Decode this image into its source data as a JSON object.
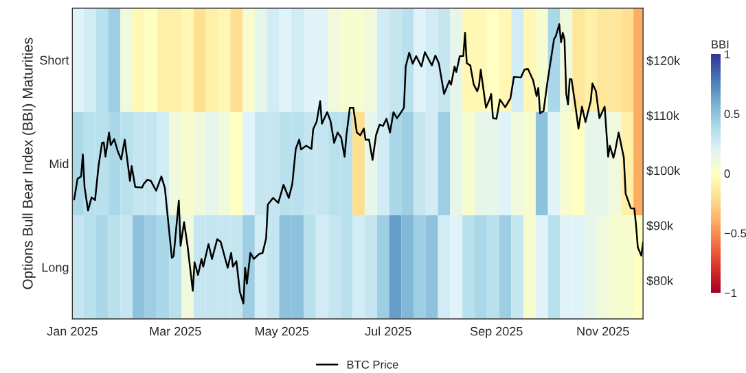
{
  "chart_data": {
    "type": "heatmap",
    "ylabel": "Options Bull Bear Index (BBI) Maturities",
    "clabel": "BBI",
    "x": [
      "2025-01-04",
      "2025-01-11",
      "2025-01-18",
      "2025-01-25",
      "2025-02-01",
      "2025-02-08",
      "2025-02-15",
      "2025-02-22",
      "2025-03-01",
      "2025-03-08",
      "2025-03-15",
      "2025-03-22",
      "2025-03-29",
      "2025-04-05",
      "2025-04-12",
      "2025-04-19",
      "2025-04-26",
      "2025-05-03",
      "2025-05-10",
      "2025-05-17",
      "2025-05-24",
      "2025-05-31",
      "2025-06-07",
      "2025-06-14",
      "2025-06-21",
      "2025-06-28",
      "2025-07-05",
      "2025-07-12",
      "2025-07-19",
      "2025-07-26",
      "2025-08-02",
      "2025-08-09",
      "2025-08-16",
      "2025-08-23",
      "2025-08-30",
      "2025-09-06",
      "2025-09-13",
      "2025-09-20",
      "2025-09-27",
      "2025-10-04",
      "2025-10-11",
      "2025-10-18",
      "2025-10-25",
      "2025-11-01",
      "2025-11-08",
      "2025-11-15",
      "2025-11-22"
    ],
    "y_categories": [
      "Short",
      "Mid",
      "Long"
    ],
    "cells": [
      [
        0.2,
        0.25,
        0.35,
        0.45,
        0.1,
        -0.05,
        0.0,
        -0.1,
        -0.1,
        -0.05,
        -0.2,
        -0.1,
        -0.05,
        -0.2,
        0.05,
        0.15,
        0.25,
        0.2,
        0.25,
        0.2,
        0.2,
        0.1,
        0.05,
        0.05,
        0.1,
        0.25,
        0.3,
        0.35,
        0.2,
        0.25,
        0.3,
        0.15,
        -0.05,
        -0.05,
        0.0,
        -0.05,
        0.25,
        -0.05,
        0.05,
        0.4,
        0.1,
        -0.15,
        -0.1,
        -0.15,
        -0.15,
        -0.2,
        -0.4
      ],
      [
        0.4,
        0.35,
        0.35,
        0.4,
        0.35,
        0.3,
        0.3,
        0.25,
        0.1,
        0.05,
        0.1,
        0.15,
        0.1,
        0.0,
        0.2,
        0.3,
        0.3,
        0.35,
        0.35,
        0.3,
        0.3,
        0.35,
        0.35,
        -0.2,
        0.15,
        0.25,
        0.4,
        0.45,
        0.3,
        0.25,
        0.45,
        0.15,
        0.05,
        0.15,
        0.15,
        0.2,
        0.1,
        0.05,
        0.5,
        0.2,
        0.05,
        0.0,
        0.15,
        0.15,
        0.1,
        -0.1,
        -0.4
      ],
      [
        0.3,
        0.35,
        0.4,
        0.35,
        0.3,
        0.5,
        0.45,
        0.4,
        0.35,
        0.1,
        0.3,
        0.3,
        0.3,
        0.3,
        0.45,
        0.25,
        0.3,
        0.5,
        0.5,
        0.35,
        0.25,
        0.3,
        0.35,
        0.25,
        0.3,
        0.45,
        0.65,
        0.55,
        0.45,
        0.5,
        0.25,
        0.2,
        0.35,
        0.4,
        0.35,
        0.45,
        0.3,
        0.05,
        0.2,
        0.35,
        0.2,
        0.2,
        0.15,
        0.1,
        0.05,
        0.05,
        0.0
      ]
    ],
    "clim": [
      -1,
      1
    ],
    "cticks": [
      {
        "value": -1,
        "label": "−1"
      },
      {
        "value": -0.5,
        "label": "−0.5"
      },
      0,
      0.5,
      1
    ],
    "xlim": [
      "2025-01-01",
      "2025-11-24"
    ],
    "xticks": [
      {
        "value": "2025-01-01",
        "label": "Jan 2025"
      },
      {
        "value": "2025-03-01",
        "label": "Mar 2025"
      },
      {
        "value": "2025-05-01",
        "label": "May 2025"
      },
      {
        "value": "2025-07-01",
        "label": "Jul 2025"
      },
      {
        "value": "2025-09-01",
        "label": "Sep 2025"
      },
      {
        "value": "2025-11-01",
        "label": "Nov 2025"
      }
    ],
    "y2lim": [
      73000,
      129500
    ],
    "y2ticks": [
      {
        "value": 80000,
        "label": "$80k"
      },
      {
        "value": 90000,
        "label": "$90k"
      },
      {
        "value": 100000,
        "label": "$100k"
      },
      {
        "value": 110000,
        "label": "$110k"
      },
      {
        "value": 120000,
        "label": "$120k"
      }
    ],
    "legend": "bottom",
    "series": [
      {
        "type": "line",
        "name": "BTC Price",
        "color": "#000000",
        "axis": "y2",
        "x": [
          "2025-01-02",
          "2025-01-04",
          "2025-01-06",
          "2025-01-07",
          "2025-01-08",
          "2025-01-10",
          "2025-01-12",
          "2025-01-14",
          "2025-01-16",
          "2025-01-18",
          "2025-01-19",
          "2025-01-20",
          "2025-01-22",
          "2025-01-23",
          "2025-01-25",
          "2025-01-27",
          "2025-01-29",
          "2025-01-31",
          "2025-02-03",
          "2025-02-04",
          "2025-02-06",
          "2025-02-10",
          "2025-02-11",
          "2025-02-13",
          "2025-02-15",
          "2025-02-18",
          "2025-02-21",
          "2025-02-23",
          "2025-02-27",
          "2025-02-28",
          "2025-03-03",
          "2025-03-04",
          "2025-03-06",
          "2025-03-08",
          "2025-03-11",
          "2025-03-12",
          "2025-03-14",
          "2025-03-16",
          "2025-03-17",
          "2025-03-20",
          "2025-03-22",
          "2025-03-25",
          "2025-03-27",
          "2025-03-31",
          "2025-04-02",
          "2025-04-03",
          "2025-04-05",
          "2025-04-07",
          "2025-04-09",
          "2025-04-10",
          "2025-04-11",
          "2025-04-13",
          "2025-04-15",
          "2025-04-18",
          "2025-04-20",
          "2025-04-22",
          "2025-04-23",
          "2025-04-26",
          "2025-04-29",
          "2025-05-02",
          "2025-05-05",
          "2025-05-07",
          "2025-05-09",
          "2025-05-11",
          "2025-05-12",
          "2025-05-15",
          "2025-05-18",
          "2025-05-19",
          "2025-05-21",
          "2025-05-23",
          "2025-05-24",
          "2025-05-27",
          "2025-05-29",
          "2025-05-31",
          "2025-06-02",
          "2025-06-04",
          "2025-06-06",
          "2025-06-07",
          "2025-06-09",
          "2025-06-11",
          "2025-06-13",
          "2025-06-15",
          "2025-06-17",
          "2025-06-18",
          "2025-06-20",
          "2025-06-22",
          "2025-06-24",
          "2025-06-26",
          "2025-06-28",
          "2025-06-30",
          "2025-07-02",
          "2025-07-04",
          "2025-07-06",
          "2025-07-08",
          "2025-07-10",
          "2025-07-11",
          "2025-07-13",
          "2025-07-15",
          "2025-07-17",
          "2025-07-20",
          "2025-07-22",
          "2025-07-26",
          "2025-07-28",
          "2025-07-30",
          "2025-08-02",
          "2025-08-05",
          "2025-08-06",
          "2025-08-08",
          "2025-08-09",
          "2025-08-11",
          "2025-08-13",
          "2025-08-14",
          "2025-08-15",
          "2025-08-17",
          "2025-08-19",
          "2025-08-21",
          "2025-08-22",
          "2025-08-23",
          "2025-08-26",
          "2025-08-28",
          "2025-08-29",
          "2025-08-30",
          "2025-09-01",
          "2025-09-03",
          "2025-09-06",
          "2025-09-09",
          "2025-09-11",
          "2025-09-15",
          "2025-09-17",
          "2025-09-19",
          "2025-09-22",
          "2025-09-24",
          "2025-09-25",
          "2025-09-26",
          "2025-09-28",
          "2025-09-30",
          "2025-10-04",
          "2025-10-05",
          "2025-10-07",
          "2025-10-08",
          "2025-10-09",
          "2025-10-10",
          "2025-10-11",
          "2025-10-12",
          "2025-10-13",
          "2025-10-14",
          "2025-10-16",
          "2025-10-18",
          "2025-10-20",
          "2025-10-22",
          "2025-10-25",
          "2025-10-26",
          "2025-10-28",
          "2025-10-30",
          "2025-11-02",
          "2025-11-04",
          "2025-11-05",
          "2025-11-07",
          "2025-11-08",
          "2025-11-10",
          "2025-11-13",
          "2025-11-14",
          "2025-11-17",
          "2025-11-19",
          "2025-11-20",
          "2025-11-21",
          "2025-11-23",
          "2025-11-24"
        ],
        "values": [
          94700,
          98500,
          98900,
          102900,
          96900,
          92700,
          95100,
          94600,
          100800,
          105000,
          105100,
          102500,
          106900,
          104600,
          105700,
          103500,
          102000,
          105600,
          98100,
          100800,
          97000,
          96900,
          97600,
          98300,
          98100,
          96300,
          98900,
          96800,
          84100,
          84400,
          94500,
          86300,
          90600,
          86300,
          78100,
          83300,
          81000,
          83900,
          82500,
          86600,
          83900,
          87500,
          87000,
          82300,
          85000,
          82500,
          83500,
          77900,
          75800,
          82300,
          79400,
          85000,
          83900,
          84800,
          85000,
          87600,
          93800,
          95000,
          94100,
          97400,
          95000,
          97500,
          103900,
          105600,
          103800,
          104500,
          103900,
          107500,
          108900,
          112600,
          108500,
          110600,
          108900,
          105000,
          106900,
          106000,
          102500,
          106300,
          111400,
          111400,
          106900,
          106400,
          107600,
          105600,
          105600,
          101900,
          106400,
          108300,
          108100,
          109400,
          106900,
          110600,
          109500,
          110400,
          111400,
          118900,
          121400,
          119400,
          120800,
          118900,
          121500,
          119100,
          120900,
          119500,
          113900,
          116300,
          115600,
          118900,
          117900,
          120800,
          120800,
          125000,
          119500,
          119100,
          115600,
          114400,
          115400,
          118300,
          111400,
          112900,
          113900,
          109500,
          109400,
          112900,
          111500,
          113100,
          117000,
          116900,
          118300,
          118500,
          116400,
          113500,
          115000,
          110400,
          110800,
          115600,
          123900,
          124400,
          126600,
          123300,
          125000,
          123800,
          113900,
          112000,
          116600,
          116600,
          112300,
          107600,
          111600,
          108800,
          112600,
          115800,
          114400,
          109500,
          111600,
          102500,
          104500,
          102300,
          103500,
          106900,
          102300,
          95800,
          93100,
          93100,
          90000,
          86000,
          84500,
          86900
        ]
      }
    ]
  }
}
